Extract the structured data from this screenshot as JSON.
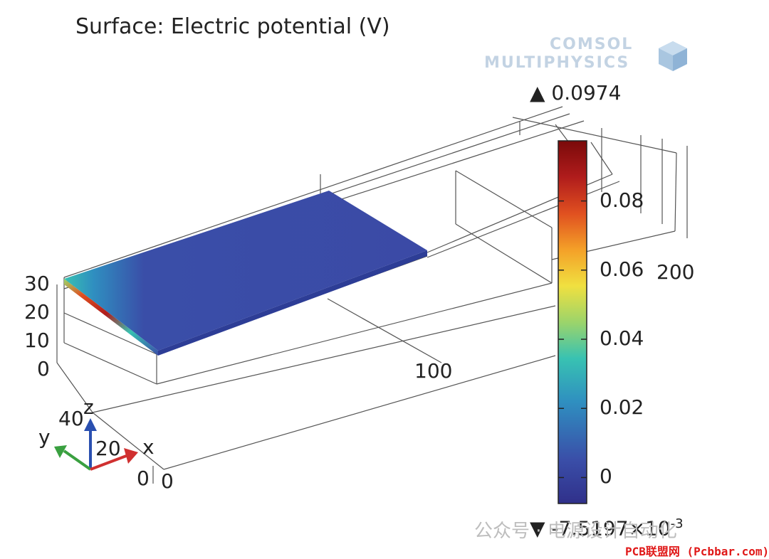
{
  "title": "Surface: Electric potential (V)",
  "logo": {
    "line1": "COMSOL",
    "line2": "MULTIPHYSICS"
  },
  "colorbar": {
    "max_label": "▲ 0.0974",
    "min_label_prefix": "▼ -7.5197×10",
    "min_label_exp": "-3",
    "ticks": [
      "0.08",
      "0.06",
      "0.04",
      "0.02",
      "0"
    ],
    "tick_values": [
      0.08,
      0.06,
      0.04,
      0.02,
      0
    ],
    "range": [
      -0.0075197,
      0.0974
    ],
    "colors": [
      "#30308a",
      "#3a4ea8",
      "#2f8fc0",
      "#38c2b2",
      "#9cd46a",
      "#f0e040",
      "#f4a028",
      "#e05020",
      "#b01c1c",
      "#7a0a0a"
    ]
  },
  "axes": {
    "z_ticks": [
      "30",
      "20",
      "10",
      "0"
    ],
    "x_tick": "100",
    "y_tick": "200",
    "origin_tick_a": "0",
    "origin_tick_b": "0"
  },
  "triad": {
    "z_label": "z",
    "y_label": "y",
    "x_label": "x",
    "z_value": "40",
    "x_value": "20"
  },
  "colors": {
    "surface": "#3b4aa6",
    "hot_edge": "#b01c1c",
    "axis_z": "#2a4fb0",
    "axis_y": "#3aa040",
    "axis_x": "#d03030"
  },
  "watermark": "公众号 · 电源设计自动化",
  "source_tag": "PCB联盟网 (Pcbbar.com)"
}
